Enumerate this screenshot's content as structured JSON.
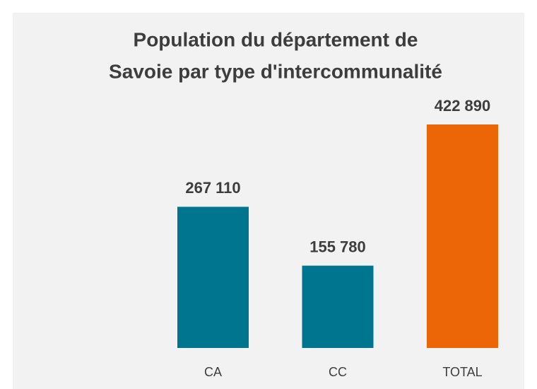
{
  "chart_data": {
    "type": "bar",
    "title": [
      "Population du département de",
      "Savoie par type d'intercommunalité"
    ],
    "categories": [
      "CA",
      "CC",
      "TOTAL"
    ],
    "values": [
      267110,
      155780,
      422890
    ],
    "value_labels": [
      "267 110",
      "155 780",
      "422 890"
    ],
    "colors": [
      "#00758f",
      "#00758f",
      "#ec6608"
    ]
  }
}
